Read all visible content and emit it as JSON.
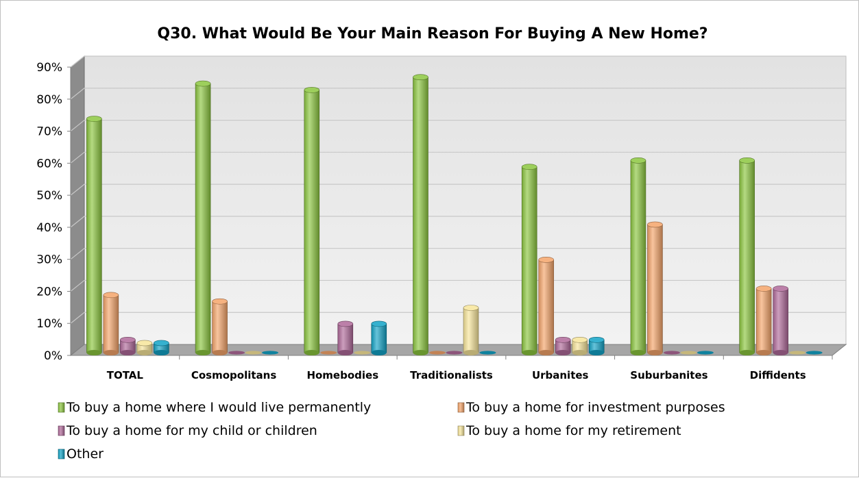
{
  "chart_data": {
    "type": "bar",
    "title": "Q30. What Would Be Your Main Reason For Buying A New Home?",
    "categories": [
      "TOTAL",
      "Cosmopolitans",
      "Homebodies",
      "Traditionalists",
      "Urbanites",
      "Suburbanites",
      "Diffidents"
    ],
    "series": [
      {
        "name": "To buy a home where I would live permanently",
        "color": "#8cc63f",
        "values": [
          73,
          84,
          82,
          86,
          58,
          60,
          60
        ]
      },
      {
        "name": "To buy a home for investment purposes",
        "color": "#f4a46a",
        "values": [
          18,
          16,
          0,
          0,
          29,
          40,
          20
        ]
      },
      {
        "name": "To buy a home for my child or children",
        "color": "#b06a9a",
        "values": [
          4,
          0,
          9,
          0,
          4,
          0,
          20
        ]
      },
      {
        "name": "To buy a home for my retirement",
        "color": "#f7e59a",
        "values": [
          3,
          0,
          0,
          14,
          4,
          0,
          0
        ]
      },
      {
        "name": "Other",
        "color": "#13a3c6",
        "values": [
          3,
          0,
          9,
          0,
          4,
          0,
          0
        ]
      }
    ],
    "ylim": [
      0,
      90
    ],
    "yticks": [
      "0%",
      "10%",
      "20%",
      "30%",
      "40%",
      "50%",
      "60%",
      "70%",
      "80%",
      "90%"
    ],
    "grid": true,
    "legend_position": "bottom"
  }
}
